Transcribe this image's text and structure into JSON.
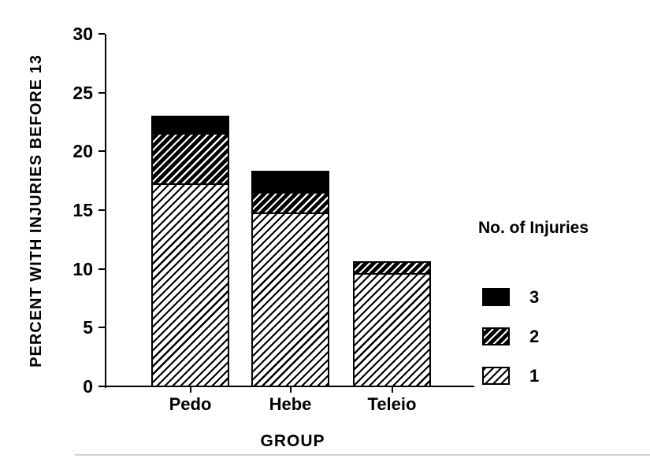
{
  "chart_data": {
    "type": "bar",
    "stacked": true,
    "title": "",
    "xlabel": "GROUP",
    "ylabel": "PERCENT WITH INJURIES BEFORE 13",
    "categories": [
      "Pedo",
      "Hebe",
      "Teleio"
    ],
    "series": [
      {
        "name": "1",
        "values": [
          17.2,
          14.7,
          9.6
        ],
        "fill": "hatch-light"
      },
      {
        "name": "2",
        "values": [
          4.3,
          1.8,
          1.0
        ],
        "fill": "hatch-dark"
      },
      {
        "name": "3",
        "values": [
          1.5,
          1.8,
          0
        ],
        "fill": "solid-black"
      }
    ],
    "totals": [
      23.0,
      18.3,
      10.6
    ],
    "ylim": [
      0,
      30
    ],
    "yticks": [
      0,
      5,
      10,
      15,
      20,
      25,
      30
    ],
    "grid": false,
    "legend": {
      "title": "No. of Injuries",
      "position": "right",
      "items": [
        {
          "label": "3",
          "fill": "solid-black"
        },
        {
          "label": "2",
          "fill": "hatch-dark"
        },
        {
          "label": "1",
          "fill": "hatch-light"
        }
      ]
    },
    "colors": {
      "ink": "#000000",
      "background": "#ffffff"
    }
  }
}
